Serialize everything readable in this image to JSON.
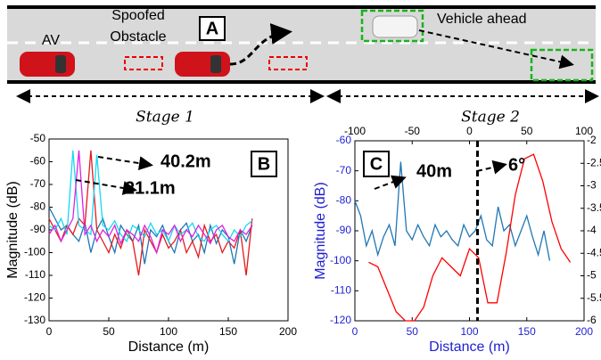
{
  "diagram": {
    "av": "AV",
    "spoofed_obstacle": [
      "Spoofed",
      "Obstacle"
    ],
    "panel": "A",
    "vehicle_ahead": "Vehicle ahead",
    "stages": [
      "Stage 1",
      "Stage 2"
    ]
  },
  "chart_data": [
    {
      "type": "line",
      "panel": "B",
      "xlabel": "Distance (m)",
      "ylabel": "Magnitude (dB)",
      "xlim": [
        0,
        200
      ],
      "xticks": [
        0,
        50,
        100,
        150,
        200
      ],
      "ylim": [
        -130,
        -50
      ],
      "yticks": [
        -130,
        -120,
        -110,
        -100,
        -90,
        -80,
        -70,
        -60,
        -50
      ],
      "annotations": [
        "40.2m",
        "21.1m"
      ],
      "x": [
        0,
        5,
        10,
        15,
        20,
        25,
        30,
        35,
        40,
        45,
        50,
        55,
        60,
        65,
        70,
        75,
        80,
        85,
        90,
        95,
        100,
        105,
        110,
        115,
        120,
        125,
        130,
        135,
        140,
        145,
        150,
        155,
        160,
        165,
        170
      ],
      "series": [
        {
          "color": "#1f77b4",
          "values": [
            -80,
            -85,
            -90,
            -88,
            -92,
            -95,
            -87,
            -100,
            -90,
            -85,
            -93,
            -100,
            -88,
            -92,
            -95,
            -88,
            -105,
            -90,
            -93,
            -88,
            -95,
            -100,
            -90,
            -87,
            -95,
            -92,
            -100,
            -88,
            -96,
            -90,
            -93,
            -105,
            -90,
            -95,
            -88
          ]
        },
        {
          "color": "#e41a1c",
          "values": [
            -85,
            -90,
            -95,
            -88,
            -92,
            -85,
            -88,
            -55,
            -90,
            -95,
            -100,
            -92,
            -98,
            -90,
            -95,
            -110,
            -90,
            -95,
            -100,
            -92,
            -98,
            -95,
            -90,
            -100,
            -95,
            -102,
            -88,
            -95,
            -92,
            -100,
            -95,
            -98,
            -90,
            -110,
            -85
          ]
        },
        {
          "color": "#17d8f0",
          "values": [
            -88,
            -90,
            -85,
            -92,
            -55,
            -88,
            -90,
            -92,
            -57,
            -88,
            -90,
            -86,
            -92,
            -95,
            -88,
            -90,
            -93,
            -87,
            -92,
            -90,
            -95,
            -88,
            -92,
            -90,
            -87,
            -93,
            -95,
            -90,
            -88,
            -92,
            -95,
            -90,
            -93,
            -88,
            -86
          ]
        },
        {
          "color": "#e020e0",
          "values": [
            -92,
            -88,
            -95,
            -90,
            -85,
            -55,
            -92,
            -88,
            -95,
            -90,
            -93,
            -88,
            -96,
            -90,
            -92,
            -95,
            -88,
            -93,
            -100,
            -90,
            -92,
            -88,
            -95,
            -90,
            -93,
            -88,
            -92,
            -96,
            -90,
            -88,
            -93,
            -95,
            -90,
            -92,
            -88
          ]
        }
      ]
    },
    {
      "type": "line",
      "panel": "C",
      "xlabel": "Distance (m)",
      "ylabel": "Magnitude (dB)",
      "xlim": [
        0,
        200
      ],
      "xticks": [
        0,
        50,
        100,
        150,
        200
      ],
      "x2lim": [
        -100,
        100
      ],
      "x2ticks": [
        -100,
        -50,
        0,
        50,
        100
      ],
      "ylim": [
        -120,
        -60
      ],
      "yticks": [
        -120,
        -110,
        -100,
        -90,
        -80,
        -70,
        -60
      ],
      "y2lim": [
        -6,
        -2
      ],
      "y2ticks": [
        -6,
        -5.5,
        -5,
        -4.5,
        -4,
        -3.5,
        -3,
        -2.5,
        -2
      ],
      "annotations": [
        "40m",
        "6°"
      ],
      "vline": 107,
      "x": [
        0,
        5,
        10,
        15,
        20,
        25,
        30,
        35,
        40,
        45,
        50,
        55,
        60,
        65,
        70,
        75,
        80,
        85,
        90,
        95,
        100,
        105,
        110,
        115,
        120,
        125,
        130,
        135,
        140,
        145,
        150,
        155,
        160,
        165,
        170
      ],
      "series": [
        {
          "color": "#1f77b4",
          "values": [
            -80,
            -85,
            -95,
            -90,
            -98,
            -92,
            -88,
            -95,
            -67,
            -90,
            -93,
            -88,
            -92,
            -95,
            -88,
            -92,
            -90,
            -93,
            -95,
            -88,
            -92,
            -90,
            -85,
            -93,
            -95,
            -82,
            -90,
            -88,
            -95,
            -90,
            -85,
            -92,
            -98,
            -90,
            -100
          ]
        },
        {
          "color": "#ff0000",
          "axis": "y2",
          "x": [
            -88,
            -80,
            -72,
            -64,
            -56,
            -48,
            -40,
            -32,
            -24,
            -16,
            -8,
            0,
            8,
            16,
            24,
            32,
            40,
            48,
            56,
            64,
            72,
            80,
            88
          ],
          "values": [
            -4.7,
            -4.8,
            -5.3,
            -5.8,
            -6.0,
            -6.0,
            -5.7,
            -5.0,
            -4.6,
            -4.8,
            -5.0,
            -4.4,
            -4.6,
            -5.6,
            -5.6,
            -4.5,
            -3.2,
            -2.4,
            -2.3,
            -2.9,
            -3.8,
            -4.4,
            -4.7
          ]
        }
      ]
    }
  ]
}
